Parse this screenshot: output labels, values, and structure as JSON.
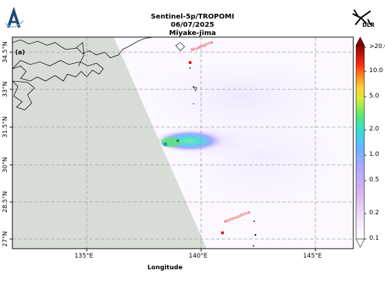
{
  "header": {
    "title": "Sentinel-5p/TROPOMI",
    "date": "06/07/2025",
    "location": "Miyake-jima",
    "logo_right": "DLR"
  },
  "panel_label": "(a)",
  "axes": {
    "xlabel": "Longitude",
    "x_ticks": [
      "135°E",
      "140°E",
      "145°E"
    ],
    "y_ticks": [
      "34.5°N",
      "33°N",
      "31.5°N",
      "30°N",
      "28.5°N",
      "27°N"
    ]
  },
  "markers": [
    {
      "name": "Miyakejima",
      "lon": 139.53,
      "lat": 34.08
    },
    {
      "name": "Nishinoshima",
      "lon": 140.88,
      "lat": 27.25
    }
  ],
  "colorbar": {
    "labels": [
      ">20.0",
      "10.0",
      "5.0",
      "2.0",
      "1.0",
      "0.5",
      "0.2",
      "0.1"
    ],
    "scale": "log"
  },
  "colors": {
    "land_mask": "#d8dcd6",
    "marker": "#e8141c",
    "grid": "#9a9a9a"
  }
}
